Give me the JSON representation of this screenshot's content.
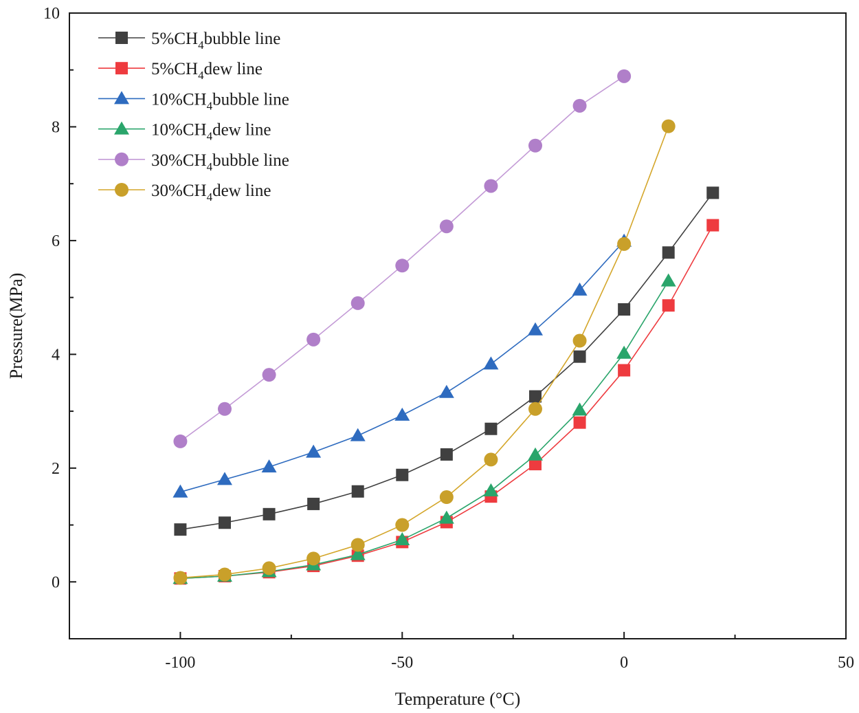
{
  "chart_data": {
    "type": "line",
    "title": "",
    "xlabel": "Temperature (°C)",
    "ylabel": "Pressure(MPa)",
    "xlim": [
      -125,
      50
    ],
    "ylim": [
      -1,
      10
    ],
    "xticks": [
      -100,
      -50,
      0,
      50
    ],
    "xtick_labels": [
      "-100",
      "-50",
      "0",
      "50"
    ],
    "yticks": [
      0,
      2,
      4,
      6,
      8,
      10
    ],
    "ytick_labels": [
      "0",
      "2",
      "4",
      "6",
      "8",
      "10"
    ],
    "legend_position": "top-left",
    "series": [
      {
        "name": "5%CH4bubble line",
        "label_parts": [
          "5%CH",
          "4",
          "bubble line"
        ],
        "marker": "square",
        "marker_color": "#404040",
        "line_color": "#404040",
        "x": [
          -100,
          -90,
          -80,
          -70,
          -60,
          -50,
          -40,
          -30,
          -20,
          -10,
          0,
          10,
          20
        ],
        "values": [
          0.92,
          1.04,
          1.19,
          1.37,
          1.59,
          1.88,
          2.24,
          2.69,
          3.26,
          3.96,
          4.79,
          5.79,
          6.84
        ]
      },
      {
        "name": "5%CH4dew line",
        "label_parts": [
          "5%CH",
          "4",
          "dew line"
        ],
        "marker": "square",
        "marker_color": "#ee3b3f",
        "line_color": "#ee3b3f",
        "x": [
          -100,
          -90,
          -80,
          -70,
          -60,
          -50,
          -40,
          -30,
          -20,
          -10,
          0,
          10,
          20
        ],
        "values": [
          0.06,
          0.1,
          0.17,
          0.28,
          0.46,
          0.7,
          1.05,
          1.5,
          2.07,
          2.8,
          3.72,
          4.86,
          6.27
        ]
      },
      {
        "name": "10%CH4bubble line",
        "label_parts": [
          "10%CH",
          "4",
          "bubble line"
        ],
        "marker": "triangle",
        "marker_color": "#2e6bbf",
        "line_color": "#2e6bbf",
        "x": [
          -100,
          -90,
          -80,
          -70,
          -60,
          -50,
          -40,
          -30,
          -20,
          -10,
          0
        ],
        "values": [
          1.58,
          1.8,
          2.02,
          2.28,
          2.57,
          2.93,
          3.33,
          3.83,
          4.43,
          5.13,
          5.99
        ]
      },
      {
        "name": "10%CH4dew line",
        "label_parts": [
          "10%CH",
          "4",
          "dew line"
        ],
        "marker": "triangle",
        "marker_color": "#2aa56b",
        "line_color": "#2aa56b",
        "x": [
          -100,
          -90,
          -80,
          -70,
          -60,
          -50,
          -40,
          -30,
          -20,
          -10,
          0,
          10
        ],
        "values": [
          0.06,
          0.1,
          0.18,
          0.3,
          0.48,
          0.74,
          1.12,
          1.6,
          2.23,
          3.02,
          4.02,
          5.29
        ]
      },
      {
        "name": "30%CH4bubble line",
        "label_parts": [
          "30%CH",
          "4",
          "bubble line"
        ],
        "marker": "circle",
        "marker_color": "#b07fc9",
        "line_color": "#c39ad6",
        "x": [
          -100,
          -90,
          -80,
          -70,
          -60,
          -50,
          -40,
          -30,
          -20,
          -10,
          0
        ],
        "values": [
          2.47,
          3.04,
          3.64,
          4.26,
          4.9,
          5.56,
          6.25,
          6.96,
          7.67,
          8.37,
          8.89
        ]
      },
      {
        "name": "30%CH4dew line",
        "label_parts": [
          "30%CH",
          "4",
          "dew line"
        ],
        "marker": "circle",
        "marker_color": "#c9a02a",
        "line_color": "#d4a62a",
        "x": [
          -100,
          -90,
          -80,
          -70,
          -60,
          -50,
          -40,
          -30,
          -20,
          -10,
          0,
          10
        ],
        "values": [
          0.07,
          0.13,
          0.24,
          0.41,
          0.65,
          1.0,
          1.49,
          2.15,
          3.04,
          4.24,
          5.94,
          8.01
        ]
      }
    ]
  }
}
